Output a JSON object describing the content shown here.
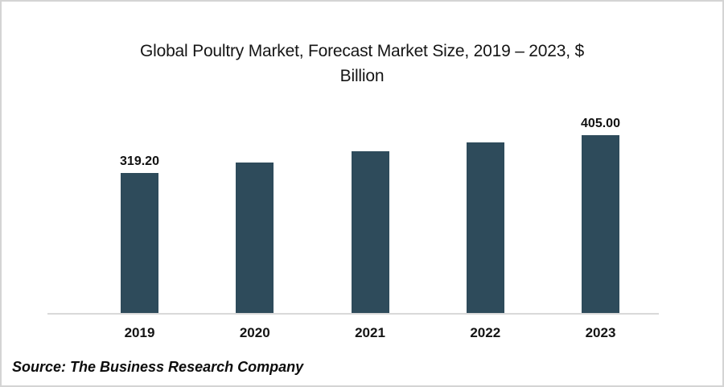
{
  "chart_data": {
    "type": "bar",
    "title": "Global Poultry Market, Forecast Market Size, 2019 – 2023, $ Billion",
    "title_lines": [
      "Global Poultry Market, Forecast Market Size, 2019 – 2023, $",
      "Billion"
    ],
    "categories": [
      "2019",
      "2020",
      "2021",
      "2022",
      "2023"
    ],
    "values": [
      319.2,
      342.5,
      368.5,
      388.5,
      405.0
    ],
    "data_labels": [
      "319.20",
      "",
      "",
      "",
      "405.00"
    ],
    "xlabel": "",
    "ylabel": "",
    "ylim": [
      0,
      405
    ],
    "gridlines": false,
    "legend": "none",
    "bar_color": "#2e4b5b",
    "axis_line_color": "#d9d9d9"
  },
  "source": {
    "text": "Source: The Business Research Company"
  }
}
